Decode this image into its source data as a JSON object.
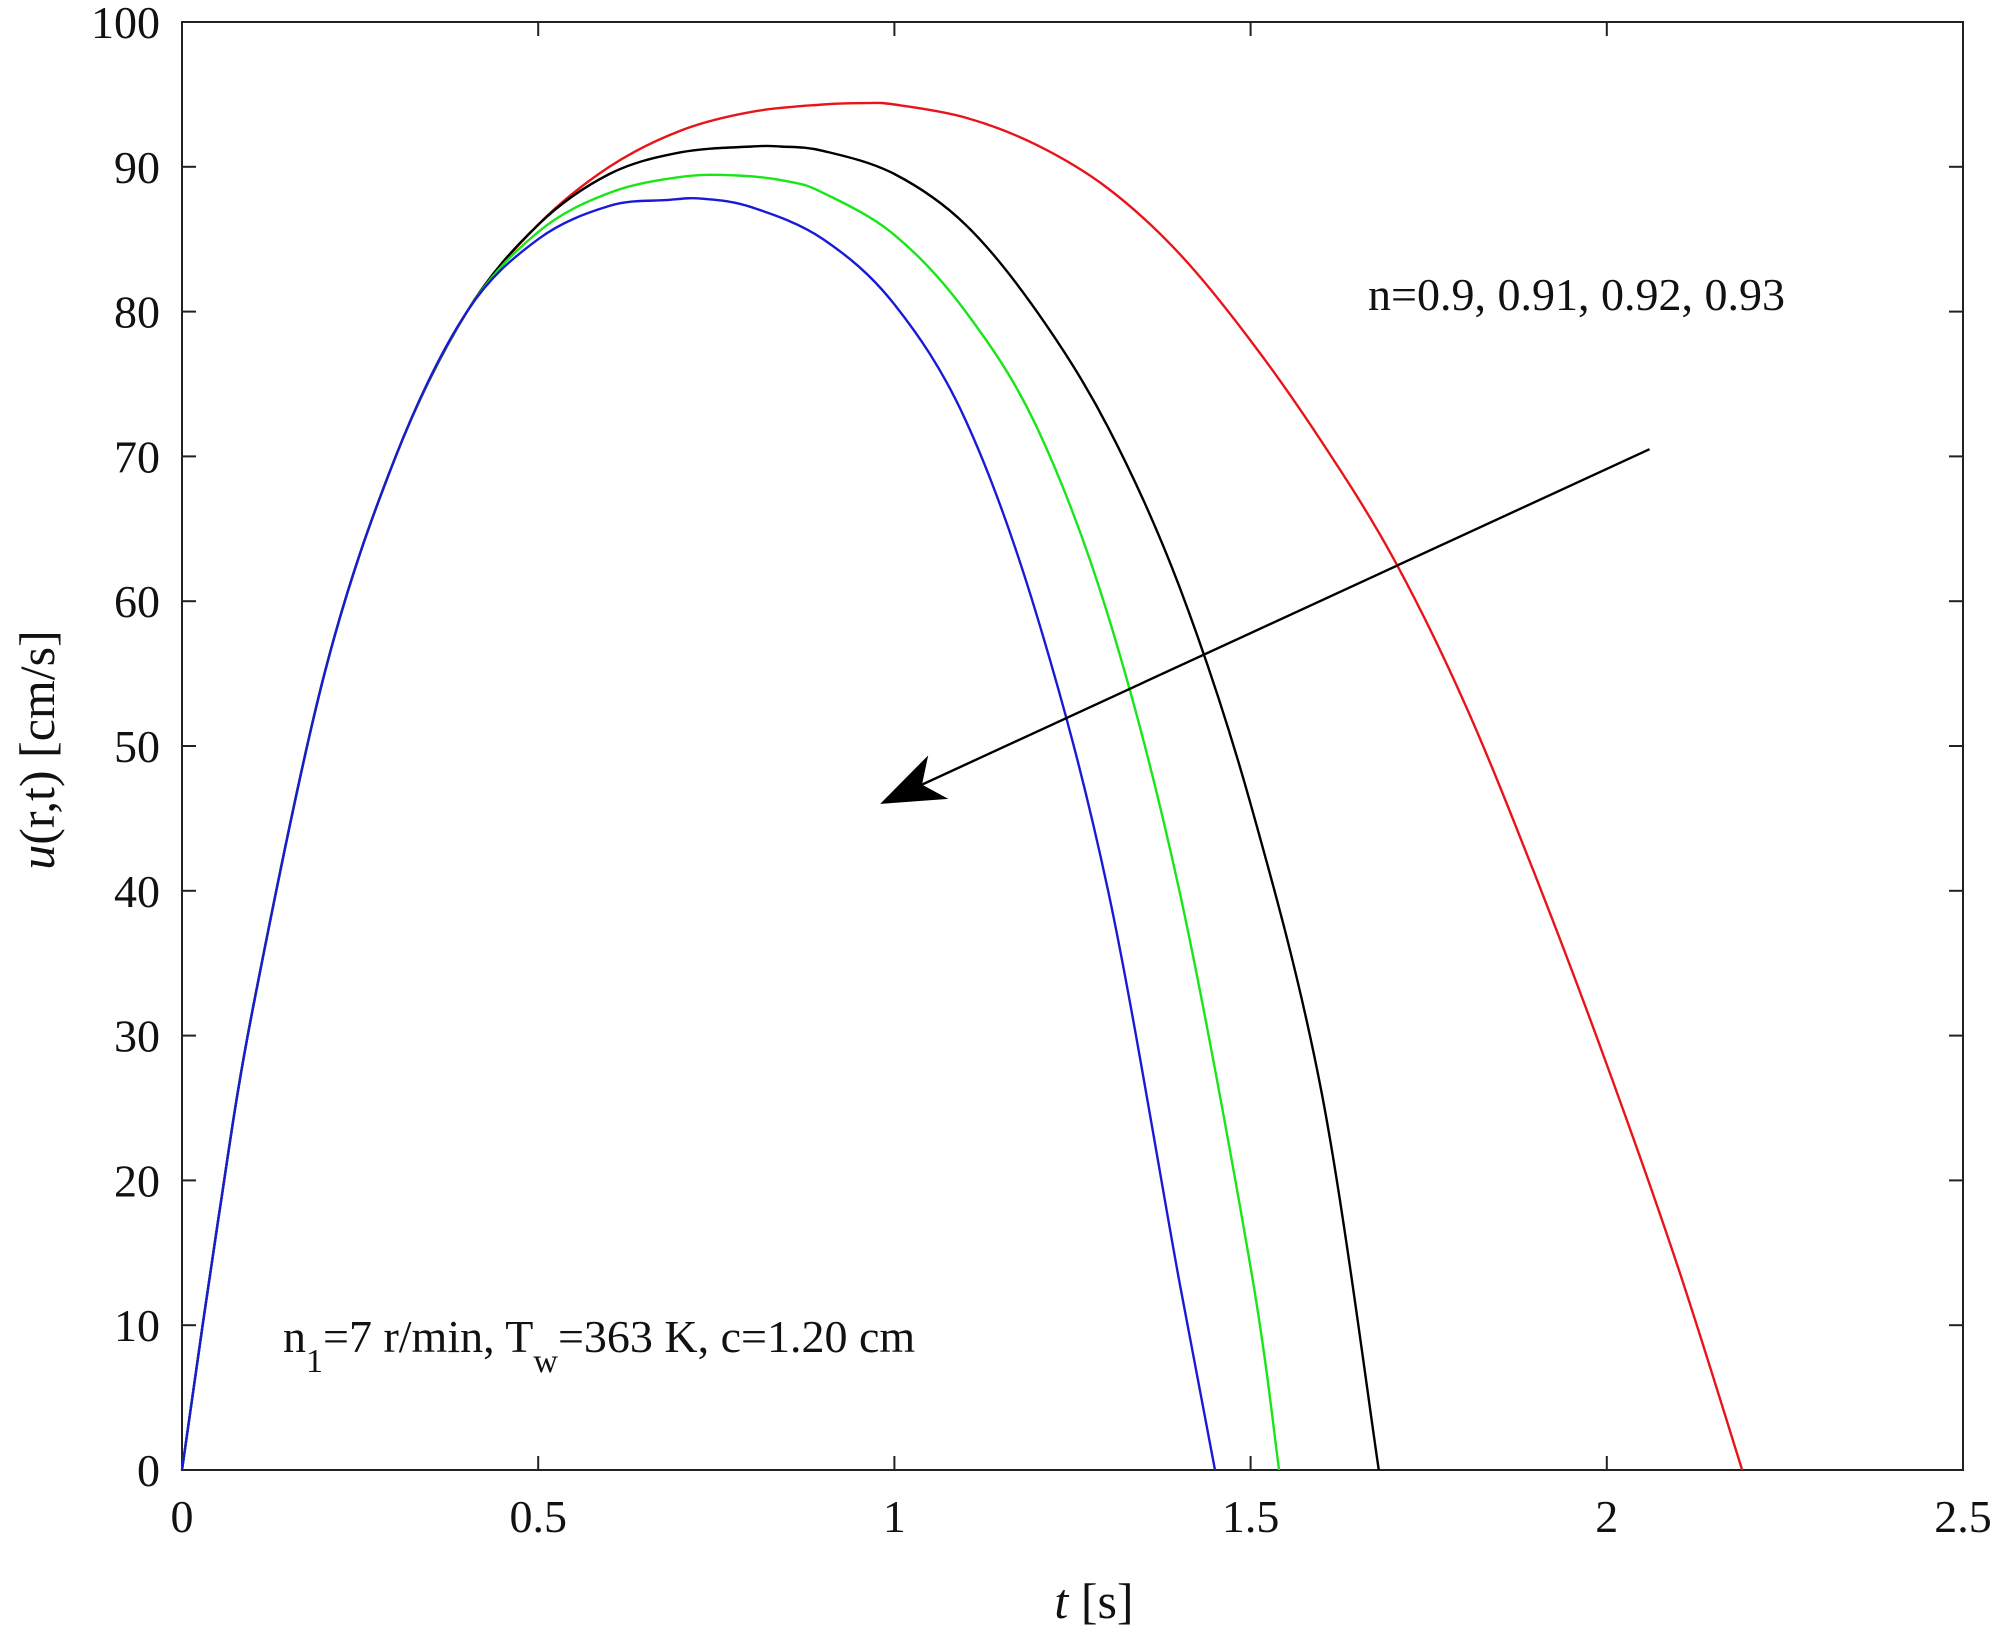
{
  "chart_data": {
    "type": "line",
    "xlabel": {
      "italic": "t",
      "rest": " [s]"
    },
    "ylabel": {
      "italic": "u",
      "rest": "(r,t) [cm/s]"
    },
    "xlim": [
      0,
      2.5
    ],
    "ylim": [
      0,
      100
    ],
    "xticks": [
      0,
      0.5,
      1,
      1.5,
      2,
      2.5
    ],
    "xtick_labels": [
      "0",
      "0.5",
      "1",
      "1.5",
      "2",
      "2.5"
    ],
    "yticks": [
      0,
      10,
      20,
      30,
      40,
      50,
      60,
      70,
      80,
      90,
      100
    ],
    "ytick_labels": [
      "0",
      "10",
      "20",
      "30",
      "40",
      "50",
      "60",
      "70",
      "80",
      "90",
      "100"
    ],
    "grid": false,
    "legend": "none",
    "series": [
      {
        "color": "#e8141a",
        "x": [
          0,
          0.05,
          0.1,
          0.2,
          0.3,
          0.4,
          0.5,
          0.6,
          0.7,
          0.8,
          0.9,
          0.96,
          1.0,
          1.1,
          1.2,
          1.3,
          1.4,
          1.5,
          1.6,
          1.7,
          1.8,
          1.9,
          2.0,
          2.1,
          2.19
        ],
        "y": [
          0,
          17,
          32,
          55,
          70,
          80,
          86,
          90,
          92.5,
          93.8,
          94.3,
          94.4,
          94.3,
          93.4,
          91.5,
          88.5,
          84,
          78,
          71,
          63,
          53,
          41,
          28,
          14,
          0
        ]
      },
      {
        "color": "#000000",
        "x": [
          0,
          0.05,
          0.1,
          0.2,
          0.3,
          0.4,
          0.5,
          0.6,
          0.7,
          0.8,
          0.84,
          0.9,
          1.0,
          1.1,
          1.2,
          1.3,
          1.4,
          1.5,
          1.6,
          1.68
        ],
        "y": [
          0,
          17,
          32,
          55,
          70,
          80,
          86,
          89.5,
          91,
          91.4,
          91.4,
          91.1,
          89.5,
          86,
          80,
          72,
          61,
          46,
          26,
          0
        ]
      },
      {
        "color": "#19e619",
        "x": [
          0,
          0.05,
          0.1,
          0.2,
          0.3,
          0.4,
          0.5,
          0.6,
          0.7,
          0.78,
          0.85,
          0.9,
          1.0,
          1.1,
          1.2,
          1.3,
          1.4,
          1.5,
          1.54
        ],
        "y": [
          0,
          17,
          32,
          55,
          70,
          80,
          85.5,
          88.2,
          89.3,
          89.4,
          89,
          88.2,
          85.3,
          80,
          72,
          59,
          40,
          14,
          0
        ]
      },
      {
        "color": "#1a1ad6",
        "x": [
          0,
          0.05,
          0.1,
          0.2,
          0.3,
          0.4,
          0.5,
          0.6,
          0.68,
          0.73,
          0.8,
          0.9,
          1.0,
          1.1,
          1.2,
          1.3,
          1.4,
          1.45
        ],
        "y": [
          0,
          17,
          32,
          55,
          70,
          80,
          85,
          87.3,
          87.7,
          87.8,
          87.2,
          85,
          80.5,
          72.5,
          59,
          40,
          13,
          0
        ]
      }
    ],
    "annotations": {
      "n_list": "n=0.9, 0.91, 0.92, 0.93",
      "params": {
        "a": "n",
        "a_sub": "1",
        "b": "=7 r/min, T",
        "b_sub": "w",
        "c": "=363 K, c=1.20 cm"
      }
    },
    "arrow": {
      "from": [
        2.06,
        70.5
      ],
      "to": [
        0.98,
        46
      ]
    }
  }
}
